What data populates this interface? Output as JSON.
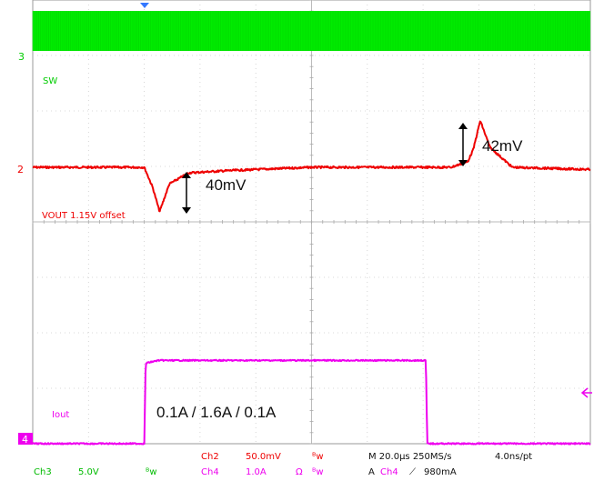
{
  "chart_data": {
    "type": "line",
    "title": "",
    "xlabel": "",
    "ylabel": "",
    "grid": true,
    "divisions": {
      "x": 10,
      "y": 8
    },
    "x_unit": "µs",
    "xlim": [
      0,
      200
    ],
    "series": [
      {
        "name": "SW",
        "channel": "Ch3",
        "marker": "3",
        "color": "#00ee00",
        "kind": "switching",
        "note": "dense switching band, 0 V to ~5 V"
      },
      {
        "name": "VOUT 1.15V offset",
        "channel": "Ch2",
        "marker": "2",
        "color": "#ee0000",
        "x": [
          0,
          40,
          43,
          45.5,
          49,
          56,
          70,
          100,
          150,
          156,
          158,
          160.5,
          164,
          172,
          200
        ],
        "y": [
          0,
          0,
          -18,
          -40,
          -15,
          -5,
          -3,
          0,
          0,
          5,
          16,
          42,
          18,
          0,
          -2
        ]
      },
      {
        "name": "Iout",
        "channel": "Ch4",
        "marker": "4",
        "color": "#ee00ee",
        "x": [
          0,
          40,
          40.5,
          45,
          100,
          141,
          141.5,
          200
        ],
        "y": [
          0.1,
          0.1,
          1.55,
          1.6,
          1.6,
          1.6,
          0.1,
          0.1
        ]
      }
    ],
    "annotations": {
      "undershoot": "40mV",
      "overshoot": "42mV",
      "load_step": "0.1A / 1.6A / 0.1A"
    },
    "status_bar": {
      "ch3": "Ch3",
      "ch3_scale": "5.0V",
      "bw1": "ᴮw",
      "ch2": "Ch2",
      "ch2_scale": "50.0mV",
      "bw2": "ᴮw",
      "ch4": "Ch4",
      "ch4_scale": "1.0A",
      "ohm": "Ω",
      "bw3": "ᴮw",
      "timebase": "M 20.0µs 250MS/s",
      "resolution": "4.0ns/pt",
      "trigger_mode": "A",
      "trigger_src": "Ch4",
      "trigger_slope": "⟋",
      "trigger_level": "980mA"
    }
  }
}
